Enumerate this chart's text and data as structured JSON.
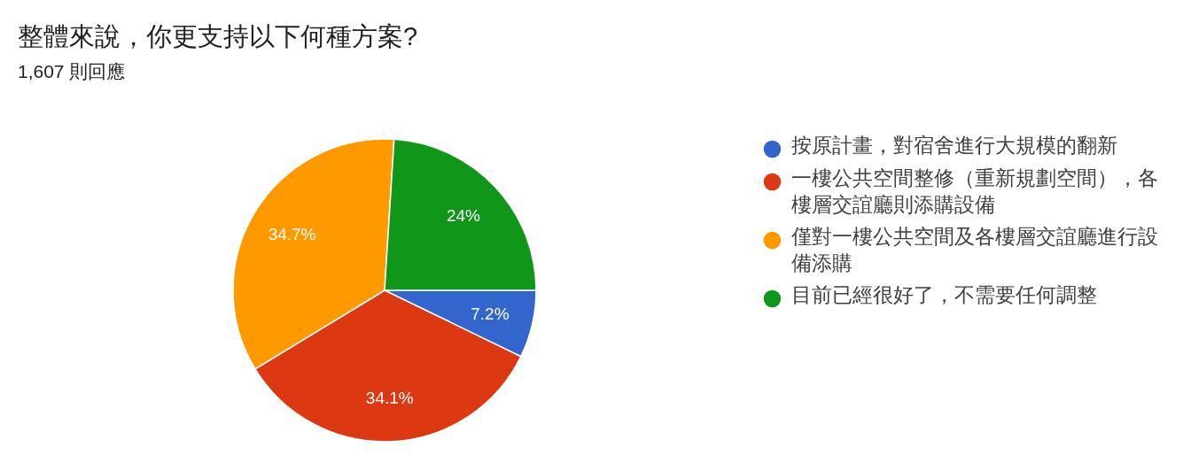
{
  "chart_data": {
    "type": "pie",
    "title": "整體來說，你更支持以下何種方案?",
    "subtitle": "1,607 則回應",
    "categories": [
      "按原計畫，對宿舍進行大規模的翻新",
      "一樓公共空間整修（重新規劃空間），各樓層交誼廳則添購設備",
      "僅對一樓公共空間及各樓層交誼廳進行設備添購",
      "目前已經很好了，不需要任何調整"
    ],
    "values": [
      7.2,
      34.1,
      34.7,
      24
    ],
    "colors": [
      "#3366cc",
      "#dc3912",
      "#ff9900",
      "#109618"
    ],
    "value_labels": [
      "7.2%",
      "34.1%",
      "34.7%",
      "24%"
    ],
    "legend": "right"
  }
}
